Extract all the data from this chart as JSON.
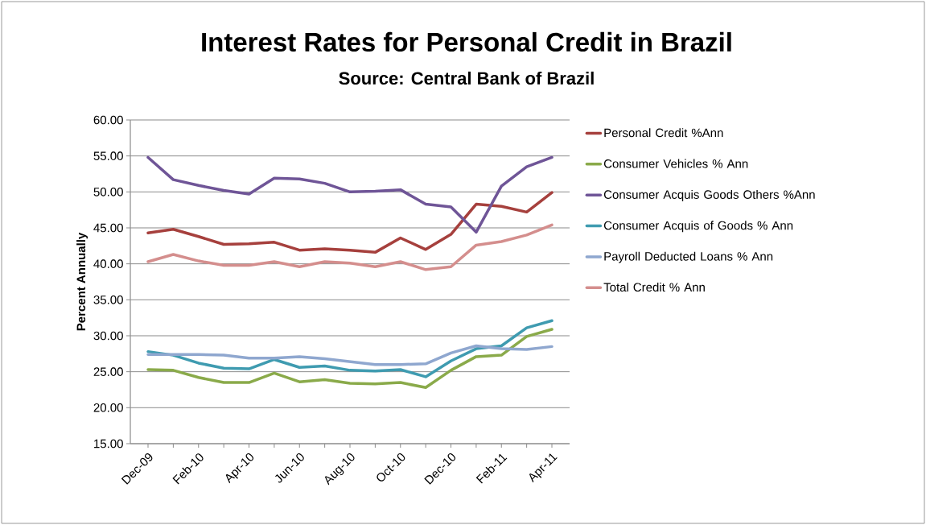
{
  "chart_data": {
    "type": "line",
    "title": "Interest Rates for Personal Credit in Brazil",
    "subtitle": "Source: Central Bank of Brazil",
    "ylabel": "Percent Annually",
    "categories": [
      "Dec-09",
      null,
      "Feb-10",
      null,
      "Apr-10",
      null,
      "Jun-10",
      null,
      "Aug-10",
      null,
      "Oct-10",
      null,
      "Dec-10",
      null,
      "Feb-11",
      null,
      "Apr-11"
    ],
    "series": [
      {
        "name": "Personal Credit %Ann",
        "color": "#a6403d",
        "values": [
          44.3,
          44.8,
          43.8,
          42.7,
          42.8,
          43.0,
          41.9,
          42.1,
          41.9,
          41.6,
          43.6,
          42.0,
          44.1,
          48.3,
          48.0,
          47.2,
          49.9
        ]
      },
      {
        "name": "Consumer Vehicles % Ann",
        "color": "#8aaa4a",
        "values": [
          25.3,
          25.2,
          24.2,
          23.5,
          23.5,
          24.8,
          23.6,
          23.9,
          23.4,
          23.3,
          23.5,
          22.8,
          25.2,
          27.1,
          27.3,
          29.9,
          30.9
        ]
      },
      {
        "name": "Consumer Acquis Goods Others %Ann",
        "color": "#6f5597",
        "values": [
          54.8,
          51.7,
          50.9,
          50.2,
          49.7,
          51.9,
          51.8,
          51.2,
          50.0,
          50.1,
          50.3,
          48.3,
          47.9,
          44.4,
          50.8,
          53.5,
          54.8
        ]
      },
      {
        "name": "Consumer Acquis of Goods % Ann",
        "color": "#3f9bb0",
        "values": [
          27.8,
          27.3,
          26.2,
          25.5,
          25.4,
          26.7,
          25.6,
          25.8,
          25.2,
          25.1,
          25.3,
          24.3,
          26.5,
          28.2,
          28.6,
          31.1,
          32.1
        ]
      },
      {
        "name": "Payroll Deducted Loans % Ann",
        "color": "#8fa7cf",
        "values": [
          27.4,
          27.4,
          27.4,
          27.3,
          26.9,
          26.9,
          27.1,
          26.8,
          26.4,
          26.0,
          26.0,
          26.1,
          27.6,
          28.6,
          28.2,
          28.1,
          28.5
        ]
      },
      {
        "name": "Total Credit % Ann",
        "color": "#d48e8d",
        "values": [
          40.3,
          41.3,
          40.4,
          39.8,
          39.8,
          40.3,
          39.6,
          40.3,
          40.1,
          39.6,
          40.3,
          39.2,
          39.6,
          42.6,
          43.1,
          44.0,
          45.4
        ]
      }
    ],
    "ylim": [
      15,
      60
    ],
    "yticks": [
      {
        "value": 15,
        "label": "15.00"
      },
      {
        "value": 20,
        "label": "20.00"
      },
      {
        "value": 25,
        "label": "25.00"
      },
      {
        "value": 30,
        "label": "30.00"
      },
      {
        "value": 35,
        "label": "35.00"
      },
      {
        "value": 40,
        "label": "40.00"
      },
      {
        "value": 45,
        "label": "45.00"
      },
      {
        "value": 50,
        "label": "50.00"
      },
      {
        "value": 55,
        "label": "55.00"
      },
      {
        "value": 60,
        "label": "60.00"
      }
    ],
    "grid": "y",
    "legend": "right",
    "marker": "none",
    "line_style": "solid"
  }
}
